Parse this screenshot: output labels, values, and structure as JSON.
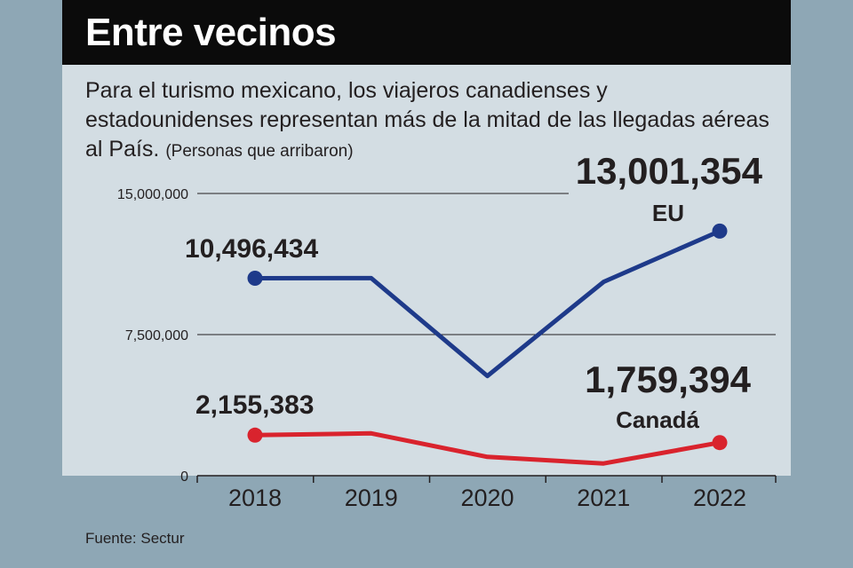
{
  "header": {
    "title": "Entre vecinos"
  },
  "subtitle": {
    "text": "Para el turismo mexicano, los viajeros canadienses y estadounidenses representan más de la mitad de las llegadas aéreas al País.",
    "unit_note": "(Personas que arribaron)"
  },
  "source": "Fuente: Sectur",
  "chart_data": {
    "type": "line",
    "title": "Entre vecinos",
    "xlabel": "",
    "ylabel": "Personas que arribaron",
    "x": [
      "2018",
      "2019",
      "2020",
      "2021",
      "2022"
    ],
    "ylim": [
      0,
      15000000
    ],
    "yticks": [
      0,
      7500000,
      15000000
    ],
    "ytick_labels": [
      "0",
      "7,500,000",
      "15,000,000"
    ],
    "series": [
      {
        "name": "EU",
        "color": "#1e3a8a",
        "values": [
          10496434,
          10500000,
          5300000,
          10300000,
          13001354
        ],
        "labels": [
          {
            "index": 0,
            "text": "10,496,434"
          },
          {
            "index": 4,
            "text": "13,001,354"
          }
        ]
      },
      {
        "name": "Canadá",
        "color": "#d9232d",
        "values": [
          2155383,
          2250000,
          1000000,
          650000,
          1759394
        ],
        "labels": [
          {
            "index": 0,
            "text": "2,155,383"
          },
          {
            "index": 4,
            "text": "1,759,394"
          }
        ]
      }
    ]
  }
}
